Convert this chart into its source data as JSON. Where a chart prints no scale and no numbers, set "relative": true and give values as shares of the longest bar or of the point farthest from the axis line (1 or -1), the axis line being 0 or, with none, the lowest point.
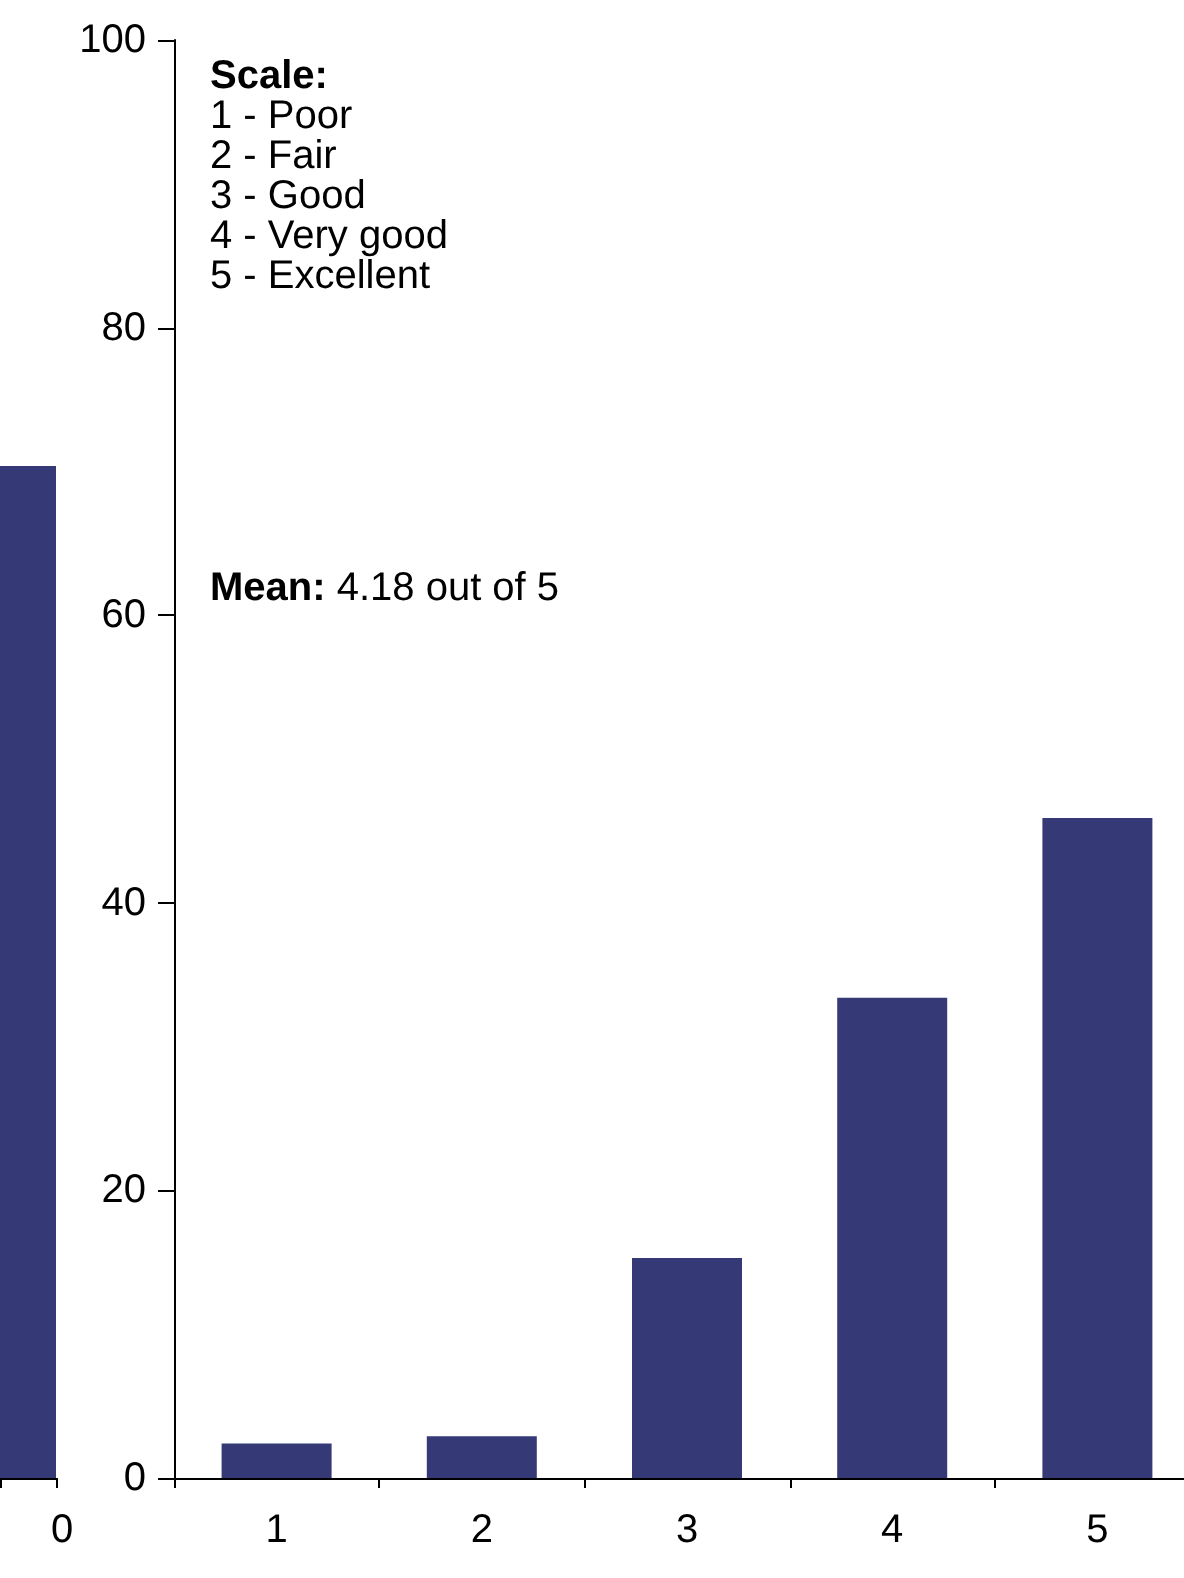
{
  "chart_data": [
    {
      "type": "bar",
      "categories": [
        "0"
      ],
      "values": [
        1
      ],
      "relative": true,
      "color": "#353a77",
      "grid": false
    },
    {
      "type": "bar",
      "categories": [
        "1",
        "2",
        "3",
        "4",
        "5"
      ],
      "values": [
        2.4,
        2.9,
        15.3,
        33.4,
        45.9
      ],
      "color": "#353a77",
      "ylim": [
        0,
        100
      ],
      "yticks": [
        0,
        20,
        40,
        60,
        80,
        100
      ],
      "grid": false,
      "annotations": [
        "Scale:\n1 - Poor\n2 - Fair\n3 - Good\n4 - Very good\n5 - Excellent",
        "Mean: 4.18 out of 5"
      ]
    }
  ]
}
